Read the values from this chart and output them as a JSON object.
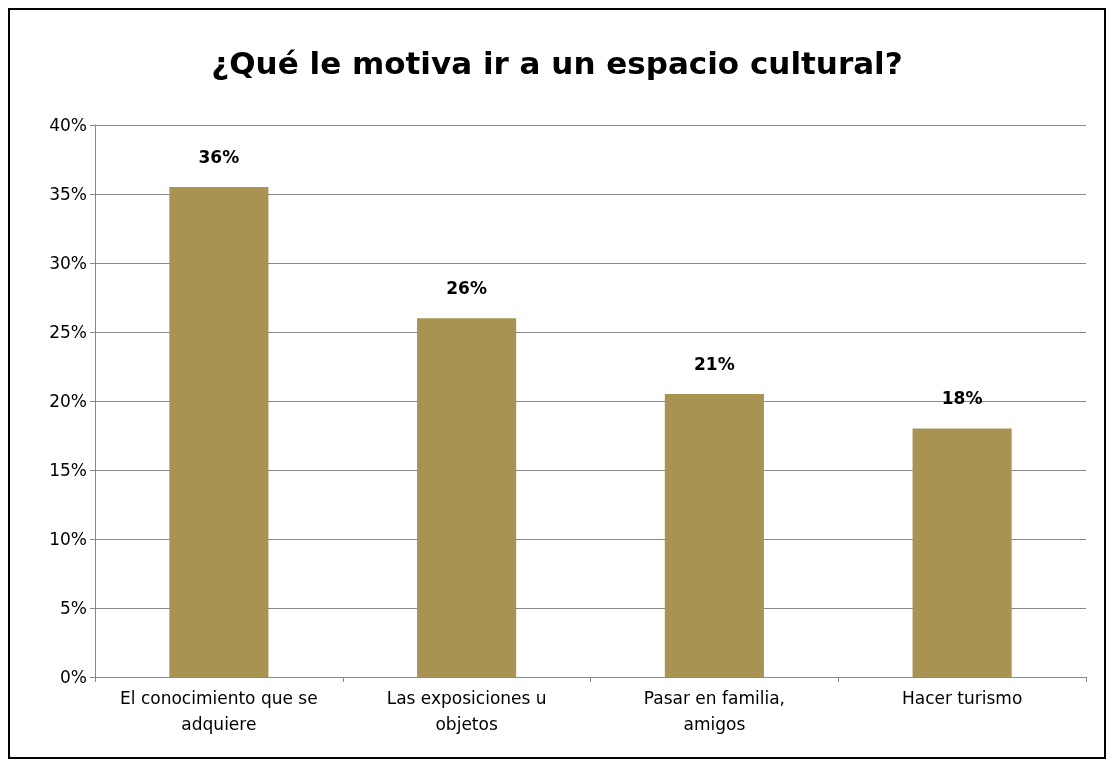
{
  "chart_data": {
    "type": "bar",
    "title": "¿Qué le motiva ir a un espacio cultural?",
    "categories": [
      "El conocimiento que se\nadquiere",
      "Las exposiciones u\nobjetos",
      "Pasar en familia,\namigos",
      "Hacer turismo"
    ],
    "values": [
      35.5,
      26,
      20.5,
      18
    ],
    "value_labels": [
      "36%",
      "26%",
      "21%",
      "18%"
    ],
    "color": "#a99352",
    "ylim": [
      0,
      40
    ],
    "yticks": [
      {
        "value": 0,
        "label": "0%"
      },
      {
        "value": 5,
        "label": "5%"
      },
      {
        "value": 10,
        "label": "10%"
      },
      {
        "value": 15,
        "label": "15%"
      },
      {
        "value": 20,
        "label": "20%"
      },
      {
        "value": 25,
        "label": "25%"
      },
      {
        "value": 30,
        "label": "30%"
      },
      {
        "value": 35,
        "label": "35%"
      },
      {
        "value": 40,
        "label": "40%"
      }
    ],
    "grid": "y"
  }
}
